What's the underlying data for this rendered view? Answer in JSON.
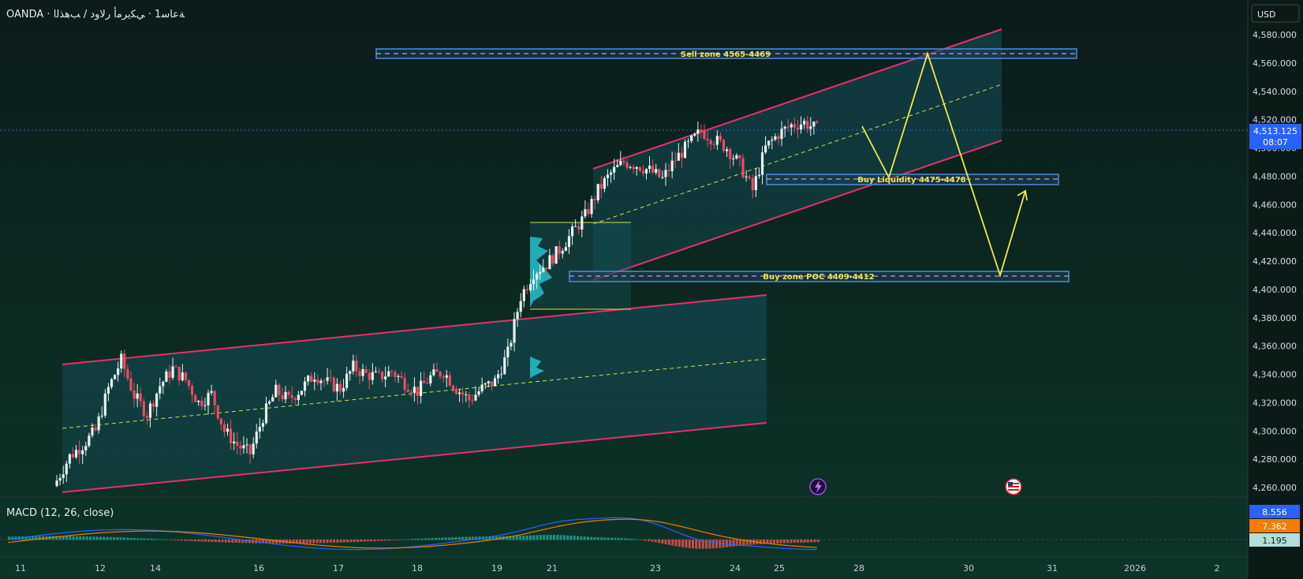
{
  "header": {
    "symbol_title": "OANDA · ﺔﻋﺎﺳ1 · ﻲﻜﻳﺮﻣﺃ ﺭﻻﻭﺩ / ﺐﻫﺬﻟﺍ"
  },
  "price_scale": {
    "currency": "USD",
    "current_price": "4,513.125",
    "countdown": "08:07",
    "ticks": [
      "4,580.000",
      "4,560.000",
      "4,540.000",
      "4,520.000",
      "4,500.000",
      "4,480.000",
      "4,460.000",
      "4,440.000",
      "4,420.000",
      "4,400.000",
      "4,380.000",
      "4,360.000",
      "4,340.000",
      "4,320.000",
      "4,300.000",
      "4,280.000",
      "4,260.000"
    ]
  },
  "time_axis": {
    "labels": [
      "11",
      "12",
      "14",
      "16",
      "17",
      "18",
      "19",
      "21",
      "23",
      "24",
      "25",
      "28",
      "30",
      "31",
      "2026",
      "2"
    ]
  },
  "annotations": {
    "sell_zone": "Sell zone 4565-4469",
    "buy_liquidity": "Buy Liquidity 4475-4478",
    "buy_zone": "Buy zone POC 4409-4412"
  },
  "macd": {
    "title": "MACD (12, 26, close)",
    "macd_value": "8.556",
    "signal_value": "7.362",
    "hist_value": "1.195"
  },
  "colors": {
    "background_top": "#0b1e1b",
    "background_bottom": "#0d3326",
    "up_candle": "#e6f2f0",
    "down_candle": "#ef4b5f",
    "channel": "#e8306b",
    "zone_border": "#4f8dd6",
    "annotation_text": "#f2e35a",
    "projection": "#f1e94a",
    "macd_line": "#2962ff",
    "signal_line": "#f57c00",
    "hist_up": "#26a69a",
    "hist_down": "#ef5350"
  },
  "chart_data": {
    "type": "candlestick",
    "ylim": [
      4250,
      4590
    ],
    "series": [
      {
        "name": "close",
        "values": [
          4265,
          4282,
          4290,
          4300,
          4330,
          4350,
          4325,
          4312,
          4332,
          4344,
          4336,
          4320,
          4326,
          4300,
          4290,
          4284,
          4310,
          4328,
          4322,
          4330,
          4340,
          4334,
          4330,
          4345,
          4340,
          4338,
          4342,
          4334,
          4328,
          4338,
          4342,
          4330,
          4322,
          4330,
          4335,
          4355,
          4395,
          4412,
          4418,
          4428,
          4440,
          4452,
          4470,
          4482,
          4490,
          4488,
          4484,
          4478,
          4492,
          4502,
          4512,
          4506,
          4500,
          4488,
          4470,
          4500,
          4510,
          4516,
          4518,
          4513
        ]
      }
    ]
  }
}
